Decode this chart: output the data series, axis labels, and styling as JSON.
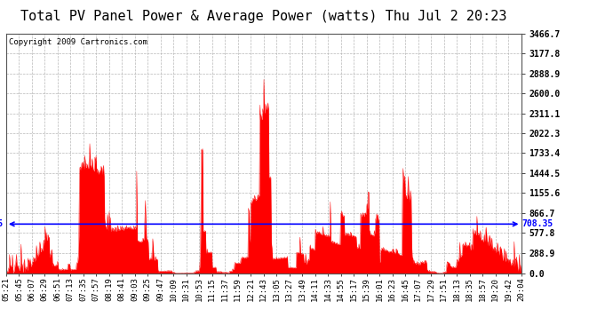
{
  "title": "Total PV Panel Power & Average Power (watts) Thu Jul 2 20:23",
  "copyright": "Copyright 2009 Cartronics.com",
  "average_value": 708.35,
  "ymax": 3466.7,
  "ymin": 0.0,
  "yticks": [
    0.0,
    288.9,
    577.8,
    866.7,
    1155.6,
    1444.5,
    1733.4,
    2022.3,
    2311.1,
    2600.0,
    2888.9,
    3177.8,
    3466.7
  ],
  "x_labels": [
    "05:21",
    "05:45",
    "06:07",
    "06:29",
    "06:51",
    "07:13",
    "07:35",
    "07:57",
    "08:19",
    "08:41",
    "09:03",
    "09:25",
    "09:47",
    "10:09",
    "10:31",
    "10:53",
    "11:15",
    "11:37",
    "11:59",
    "12:21",
    "12:43",
    "13:05",
    "13:27",
    "13:49",
    "14:11",
    "14:33",
    "14:55",
    "15:17",
    "15:39",
    "16:01",
    "16:23",
    "16:45",
    "17:07",
    "17:29",
    "17:51",
    "18:13",
    "18:35",
    "18:57",
    "19:20",
    "19:42",
    "20:04"
  ],
  "bg_color": "#ffffff",
  "fill_color": "#ff0000",
  "avg_line_color": "#0000ff",
  "grid_color": "#b0b0b0",
  "title_fontsize": 11,
  "label_fontsize": 7,
  "copyright_fontsize": 6.5
}
